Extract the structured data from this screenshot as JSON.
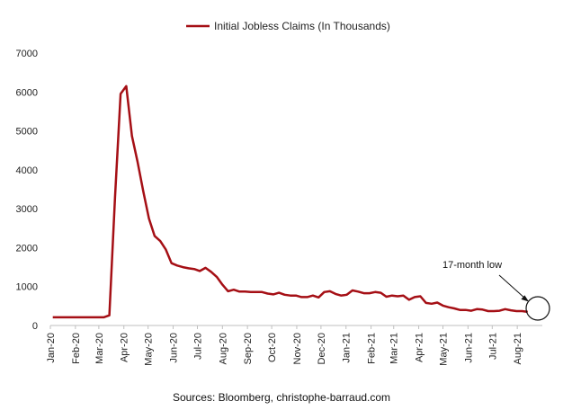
{
  "chart_data": {
    "type": "line",
    "title": "",
    "xlabel": "",
    "ylabel": "",
    "ylim": [
      0,
      7000
    ],
    "yticks": [
      0,
      1000,
      2000,
      3000,
      4000,
      5000,
      6000,
      7000
    ],
    "grid": false,
    "legend_position": "top-center",
    "x_tick_labels": [
      "Jan-20",
      "Feb-20",
      "Mar-20",
      "Apr-20",
      "May-20",
      "Jun-20",
      "Jul-20",
      "Aug-20",
      "Sep-20",
      "Oct-20",
      "Nov-20",
      "Dec-20",
      "Jan-21",
      "Feb-21",
      "Mar-21",
      "Apr-21",
      "May-21",
      "Jun-21",
      "Jul-21",
      "Aug-21"
    ],
    "series": [
      {
        "name": "Initial Jobless Claims (In Thousands)",
        "color": "#a50f15",
        "x": [
          "2020-01-04",
          "2020-01-11",
          "2020-01-18",
          "2020-01-25",
          "2020-02-01",
          "2020-02-08",
          "2020-02-15",
          "2020-02-22",
          "2020-02-29",
          "2020-03-07",
          "2020-03-14",
          "2020-03-21",
          "2020-03-28",
          "2020-04-04",
          "2020-04-11",
          "2020-04-18",
          "2020-04-25",
          "2020-05-02",
          "2020-05-09",
          "2020-05-16",
          "2020-05-23",
          "2020-05-30",
          "2020-06-06",
          "2020-06-13",
          "2020-06-20",
          "2020-06-27",
          "2020-07-04",
          "2020-07-11",
          "2020-07-18",
          "2020-07-25",
          "2020-08-01",
          "2020-08-08",
          "2020-08-15",
          "2020-08-22",
          "2020-08-29",
          "2020-09-05",
          "2020-09-12",
          "2020-09-19",
          "2020-09-26",
          "2020-10-03",
          "2020-10-10",
          "2020-10-17",
          "2020-10-24",
          "2020-10-31",
          "2020-11-07",
          "2020-11-14",
          "2020-11-21",
          "2020-11-28",
          "2020-12-05",
          "2020-12-12",
          "2020-12-19",
          "2020-12-26",
          "2021-01-02",
          "2021-01-09",
          "2021-01-16",
          "2021-01-23",
          "2021-01-30",
          "2021-02-06",
          "2021-02-13",
          "2021-02-20",
          "2021-02-27",
          "2021-03-06",
          "2021-03-13",
          "2021-03-20",
          "2021-03-27",
          "2021-04-03",
          "2021-04-10",
          "2021-04-17",
          "2021-04-24",
          "2021-05-01",
          "2021-05-08",
          "2021-05-15",
          "2021-05-22",
          "2021-05-29",
          "2021-06-05",
          "2021-06-12",
          "2021-06-19",
          "2021-06-26",
          "2021-07-03",
          "2021-07-10",
          "2021-07-17",
          "2021-07-24",
          "2021-07-31",
          "2021-08-07",
          "2021-08-14"
        ],
        "values": [
          210,
          210,
          210,
          210,
          210,
          210,
          210,
          210,
          210,
          210,
          260,
          3300,
          5950,
          6150,
          4870,
          4200,
          3450,
          2750,
          2300,
          2170,
          1950,
          1600,
          1540,
          1500,
          1470,
          1450,
          1400,
          1480,
          1380,
          1250,
          1050,
          880,
          920,
          870,
          870,
          860,
          860,
          860,
          820,
          800,
          840,
          790,
          770,
          770,
          730,
          730,
          770,
          720,
          860,
          880,
          810,
          770,
          790,
          900,
          870,
          830,
          830,
          860,
          840,
          740,
          770,
          750,
          770,
          660,
          730,
          750,
          580,
          560,
          590,
          510,
          470,
          440,
          400,
          400,
          380,
          420,
          410,
          370,
          370,
          380,
          420,
          390,
          370,
          370,
          350
        ]
      }
    ],
    "annotations": [
      {
        "text": "17-month low",
        "x": "2021-08-14",
        "y": 350
      }
    ]
  },
  "legend": {
    "label": "Initial Jobless Claims (In Thousands)"
  },
  "footer": {
    "source": "Sources: Bloomberg, christophe-barraud.com"
  }
}
